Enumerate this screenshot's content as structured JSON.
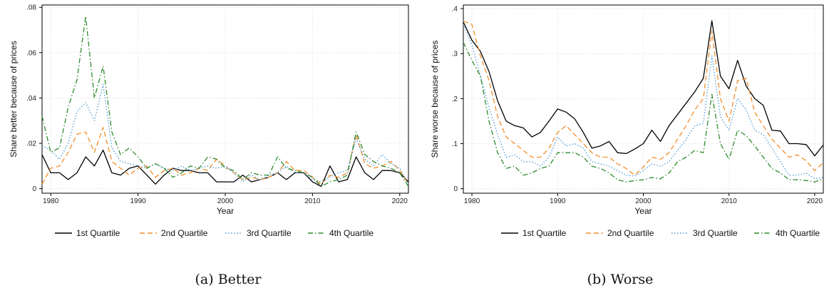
{
  "colors": {
    "q1": "#000000",
    "q2": "#f28e2b",
    "q3": "#4e9bd6",
    "q4": "#2e8b2e"
  },
  "chart_data": [
    {
      "type": "line",
      "caption": "(a) Better",
      "xlabel": "Year",
      "ylabel": "Share better because of prices",
      "xlim": [
        1979,
        2021
      ],
      "ylim": [
        -0.002,
        0.081
      ],
      "xticks": [
        1980,
        1990,
        2000,
        2010,
        2020
      ],
      "yticks": [
        0,
        0.02,
        0.04,
        0.06,
        0.08
      ],
      "ytick_labels": [
        "0",
        ".02",
        ".04",
        ".06",
        ".08"
      ],
      "grid": true,
      "legend": "bottom",
      "x": [
        1979,
        1980,
        1981,
        1982,
        1983,
        1984,
        1985,
        1986,
        1987,
        1988,
        1989,
        1990,
        1991,
        1992,
        1993,
        1994,
        1995,
        1996,
        1997,
        1998,
        1999,
        2000,
        2001,
        2002,
        2003,
        2004,
        2005,
        2006,
        2007,
        2008,
        2009,
        2010,
        2011,
        2012,
        2013,
        2014,
        2015,
        2016,
        2017,
        2018,
        2019,
        2020,
        2021
      ],
      "series": [
        {
          "name": "1st Quartile",
          "style": "solid",
          "color_key": "q1",
          "values": [
            0.015,
            0.007,
            0.007,
            0.004,
            0.007,
            0.014,
            0.01,
            0.017,
            0.007,
            0.006,
            0.009,
            0.01,
            0.006,
            0.002,
            0.006,
            0.009,
            0.008,
            0.008,
            0.007,
            0.007,
            0.003,
            0.003,
            0.003,
            0.006,
            0.003,
            0.004,
            0.005,
            0.007,
            0.004,
            0.007,
            0.007,
            0.003,
            0.001,
            0.01,
            0.003,
            0.004,
            0.014,
            0.007,
            0.004,
            0.008,
            0.008,
            0.007,
            0.003
          ]
        },
        {
          "name": "2nd Quartile",
          "style": "dashed",
          "color_key": "q2",
          "values": [
            0.002,
            0.009,
            0.01,
            0.016,
            0.024,
            0.025,
            0.016,
            0.027,
            0.012,
            0.009,
            0.006,
            0.009,
            0.01,
            0.005,
            0.008,
            0.009,
            0.006,
            0.007,
            0.009,
            0.008,
            0.013,
            0.01,
            0.007,
            0.004,
            0.005,
            0.004,
            0.005,
            0.007,
            0.012,
            0.008,
            0.008,
            0.005,
            0.002,
            0.006,
            0.005,
            0.007,
            0.024,
            0.011,
            0.009,
            0.01,
            0.012,
            0.008,
            0.002
          ]
        },
        {
          "name": "3rd Quartile",
          "style": "dotted",
          "color_key": "q3",
          "values": [
            0.019,
            0.017,
            0.013,
            0.02,
            0.034,
            0.038,
            0.03,
            0.046,
            0.018,
            0.012,
            0.011,
            0.01,
            0.009,
            0.011,
            0.009,
            0.008,
            0.01,
            0.008,
            0.009,
            0.01,
            0.009,
            0.01,
            0.007,
            0.003,
            0.006,
            0.004,
            0.006,
            0.007,
            0.01,
            0.007,
            0.007,
            0.004,
            0.003,
            0.005,
            0.007,
            0.008,
            0.022,
            0.013,
            0.01,
            0.015,
            0.011,
            0.009,
            0.002
          ]
        },
        {
          "name": "4th Quartile",
          "style": "dashdot",
          "color_key": "q4",
          "values": [
            0.032,
            0.016,
            0.018,
            0.036,
            0.048,
            0.076,
            0.04,
            0.054,
            0.025,
            0.015,
            0.018,
            0.014,
            0.009,
            0.011,
            0.009,
            0.005,
            0.007,
            0.01,
            0.009,
            0.014,
            0.013,
            0.009,
            0.008,
            0.004,
            0.007,
            0.006,
            0.006,
            0.014,
            0.009,
            0.008,
            0.007,
            0.005,
            0.001,
            0.003,
            0.004,
            0.006,
            0.025,
            0.015,
            0.012,
            0.01,
            0.009,
            0.007,
            0.001
          ]
        }
      ]
    },
    {
      "type": "line",
      "caption": "(b) Worse",
      "xlabel": "Year",
      "ylabel": "Share worse because of prices",
      "xlim": [
        1979,
        2021
      ],
      "ylim": [
        -0.01,
        0.408
      ],
      "xticks": [
        1980,
        1990,
        2000,
        2010,
        2020
      ],
      "yticks": [
        0,
        0.1,
        0.2,
        0.3,
        0.4
      ],
      "ytick_labels": [
        "0",
        ".1",
        ".2",
        ".3",
        ".4"
      ],
      "grid": true,
      "legend": "bottom",
      "x": [
        1979,
        1980,
        1981,
        1982,
        1983,
        1984,
        1985,
        1986,
        1987,
        1988,
        1989,
        1990,
        1991,
        1992,
        1993,
        1994,
        1995,
        1996,
        1997,
        1998,
        1999,
        2000,
        2001,
        2002,
        2003,
        2004,
        2005,
        2006,
        2007,
        2008,
        2009,
        2010,
        2011,
        2012,
        2013,
        2014,
        2015,
        2016,
        2017,
        2018,
        2019,
        2020,
        2021
      ],
      "series": [
        {
          "name": "1st Quartile",
          "style": "solid",
          "color_key": "q1",
          "values": [
            0.37,
            0.33,
            0.305,
            0.26,
            0.195,
            0.15,
            0.14,
            0.135,
            0.115,
            0.125,
            0.15,
            0.177,
            0.17,
            0.155,
            0.125,
            0.09,
            0.095,
            0.105,
            0.08,
            0.078,
            0.088,
            0.1,
            0.13,
            0.105,
            0.14,
            0.165,
            0.19,
            0.215,
            0.245,
            0.373,
            0.25,
            0.222,
            0.285,
            0.228,
            0.2,
            0.185,
            0.13,
            0.128,
            0.1,
            0.1,
            0.098,
            0.073,
            0.097
          ]
        },
        {
          "name": "2nd Quartile",
          "style": "dashed",
          "color_key": "q2",
          "values": [
            0.372,
            0.365,
            0.295,
            0.24,
            0.16,
            0.115,
            0.1,
            0.085,
            0.07,
            0.07,
            0.09,
            0.125,
            0.14,
            0.12,
            0.1,
            0.08,
            0.07,
            0.07,
            0.055,
            0.045,
            0.03,
            0.048,
            0.07,
            0.065,
            0.08,
            0.11,
            0.14,
            0.175,
            0.2,
            0.35,
            0.2,
            0.15,
            0.24,
            0.245,
            0.17,
            0.14,
            0.11,
            0.09,
            0.07,
            0.075,
            0.062,
            0.04,
            0.058
          ]
        },
        {
          "name": "3rd Quartile",
          "style": "dotted",
          "color_key": "q3",
          "values": [
            0.365,
            0.32,
            0.25,
            0.18,
            0.12,
            0.07,
            0.075,
            0.06,
            0.06,
            0.05,
            0.07,
            0.115,
            0.095,
            0.1,
            0.09,
            0.06,
            0.055,
            0.05,
            0.04,
            0.03,
            0.028,
            0.04,
            0.055,
            0.05,
            0.06,
            0.085,
            0.11,
            0.14,
            0.145,
            0.295,
            0.16,
            0.13,
            0.2,
            0.175,
            0.13,
            0.12,
            0.09,
            0.06,
            0.03,
            0.03,
            0.035,
            0.022,
            0.025
          ]
        },
        {
          "name": "4th Quartile",
          "style": "dashdot",
          "color_key": "q4",
          "values": [
            0.325,
            0.285,
            0.25,
            0.15,
            0.08,
            0.045,
            0.05,
            0.03,
            0.035,
            0.045,
            0.05,
            0.08,
            0.08,
            0.08,
            0.07,
            0.05,
            0.045,
            0.035,
            0.02,
            0.015,
            0.018,
            0.02,
            0.025,
            0.022,
            0.035,
            0.06,
            0.07,
            0.085,
            0.08,
            0.21,
            0.1,
            0.065,
            0.13,
            0.118,
            0.095,
            0.07,
            0.045,
            0.035,
            0.02,
            0.02,
            0.018,
            0.015,
            0.022
          ]
        }
      ]
    }
  ]
}
